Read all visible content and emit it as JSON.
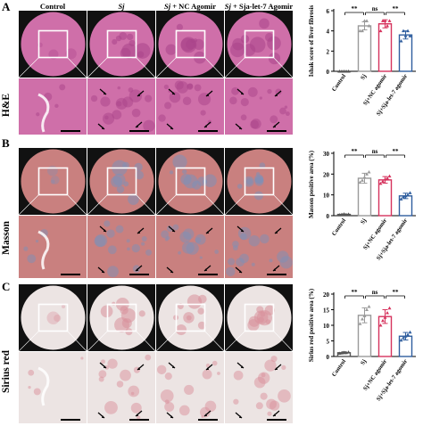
{
  "panel_letters": [
    "A",
    "B",
    "C"
  ],
  "column_headers": {
    "control": "Control",
    "sj": "Sj",
    "sj_nc_prefix": "Sj",
    "sj_nc_suffix": " + NC Agomir",
    "sj_let7_prefix": "Sj",
    "sj_let7_suffix": " + Sja-let-7 Agomir"
  },
  "row_labels": [
    "H&E",
    "Masson",
    "Sirius red"
  ],
  "micrograph_colors": {
    "he_bg": "#cf6fa9",
    "he_dark": "#a9438a",
    "masson_bg": "#c9807f",
    "masson_blue": "#7d8fb8",
    "sirius_bg": "#ece4e3",
    "sirius_red": "#d98f9b"
  },
  "chart_data": [
    {
      "type": "bar",
      "categories": [
        "Control",
        "Sj",
        "Sj+NC agomir",
        "Sj+Sja-let-7 agomir"
      ],
      "ylabel": "Ishak score of liver fibrosis",
      "ylim": [
        0,
        6
      ],
      "yticks": [
        "0",
        "2",
        "4",
        "6"
      ],
      "values": [
        0,
        4.5,
        4.7,
        3.6
      ],
      "errors": [
        0,
        0.4,
        0.4,
        0.4
      ],
      "points": [
        [
          0,
          0,
          0,
          0,
          0
        ],
        [
          4,
          4,
          5,
          5,
          4.5
        ],
        [
          4,
          5,
          5,
          4.5,
          5
        ],
        [
          3,
          4,
          3.5,
          4,
          3.5
        ]
      ],
      "colors": [
        "#555555",
        "#9a9a9a",
        "#d6325d",
        "#2f5e9e"
      ],
      "significance": [
        "**",
        "ns",
        "**"
      ]
    },
    {
      "type": "bar",
      "categories": [
        "Control",
        "Sj",
        "Sj+NC agomir",
        "Sj+Sja-let-7 agomir"
      ],
      "ylabel": "Masson positive area (%)",
      "ylim": [
        0,
        30
      ],
      "yticks": [
        "0",
        "10",
        "20",
        "30"
      ],
      "values": [
        0.6,
        18,
        17.2,
        9.5
      ],
      "errors": [
        0.2,
        2.4,
        1.6,
        1.3
      ],
      "points": [
        [
          0.4,
          0.6,
          0.8,
          0.5,
          0.7
        ],
        [
          16,
          17,
          18.5,
          20,
          21
        ],
        [
          15.5,
          16.5,
          17.5,
          18,
          19
        ],
        [
          8,
          9,
          9.5,
          10,
          11
        ]
      ],
      "colors": [
        "#555555",
        "#9a9a9a",
        "#d6325d",
        "#2f5e9e"
      ],
      "significance": [
        "**",
        "ns",
        "**"
      ]
    },
    {
      "type": "bar",
      "categories": [
        "Control",
        "Sj",
        "Sj+NC agomir",
        "Sj+Sja-let-7 agomir"
      ],
      "ylabel": "Sirius red positive area (%)",
      "ylim": [
        0,
        20
      ],
      "yticks": [
        "0",
        "5",
        "10",
        "15",
        "20"
      ],
      "values": [
        1.2,
        13.2,
        12.8,
        6.5
      ],
      "errors": [
        0.3,
        2.4,
        2.2,
        1.2
      ],
      "points": [
        [
          1,
          1.1,
          1.3,
          1.2,
          1.4
        ],
        [
          10.5,
          12,
          13,
          15,
          16
        ],
        [
          10,
          11.5,
          12.5,
          14,
          15.5
        ],
        [
          5.2,
          6,
          6.5,
          7,
          7.8
        ]
      ],
      "colors": [
        "#555555",
        "#9a9a9a",
        "#d6325d",
        "#2f5e9e"
      ],
      "significance": [
        "**",
        "ns",
        "**"
      ]
    }
  ]
}
